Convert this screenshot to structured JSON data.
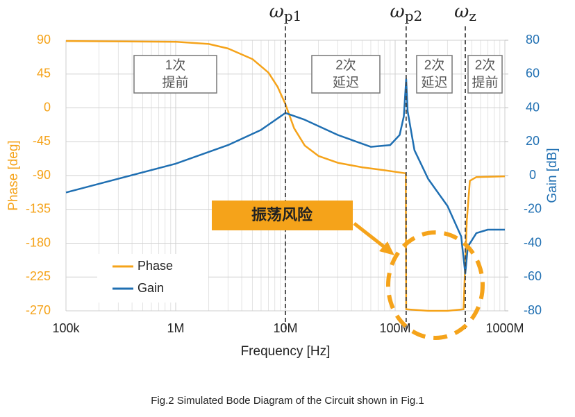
{
  "chart_data": {
    "type": "line",
    "x_label": "Frequency [Hz]",
    "y_label": "Phase [deg]",
    "y2_label": "Gain [dB]",
    "log_x": true,
    "grid": true,
    "legend": "lower left",
    "xlim": [
      100000,
      1000000000
    ],
    "xticks": [
      {
        "value": 100000,
        "label": "100k"
      },
      {
        "value": 1000000,
        "label": "1M"
      },
      {
        "value": 10000000,
        "label": "10M"
      },
      {
        "value": 100000000,
        "label": "100M"
      },
      {
        "value": 1000000000,
        "label": "1000M"
      }
    ],
    "ylim": [
      -270,
      90
    ],
    "yticks": [
      90,
      45,
      0,
      -45,
      -90,
      -135,
      -180,
      -225,
      -270
    ],
    "y2lim": [
      -80,
      80
    ],
    "y2ticks": [
      80,
      60,
      40,
      20,
      0,
      -20,
      -40,
      -60,
      -80
    ],
    "series": [
      {
        "name": "Phase",
        "color": "#f5a31a",
        "x": [
          100000,
          1000000,
          2000000,
          3000000,
          5000000,
          7000000,
          8500000,
          10000000,
          12000000,
          15000000,
          20000000,
          30000000,
          50000000,
          80000000,
          125000000,
          126000000,
          200000000,
          300000000,
          420000000,
          450000000,
          480000000,
          550000000,
          1000000000
        ],
        "values": [
          89,
          88,
          85,
          79,
          65,
          47,
          28,
          5,
          -27,
          -50,
          -64,
          -73,
          -79,
          -83,
          -87,
          -268,
          -270,
          -270,
          -268,
          -150,
          -97,
          -92,
          -91
        ]
      },
      {
        "name": "Gain",
        "color": "#1f6fb2",
        "axis": "y2",
        "x": [
          100000,
          1000000,
          3000000,
          6000000,
          10000000,
          15000000,
          30000000,
          60000000,
          90000000,
          110000000,
          120000000,
          126000000,
          130000000,
          150000000,
          200000000,
          300000000,
          400000000,
          436000000,
          460000000,
          550000000,
          700000000,
          1000000000
        ],
        "values": [
          -10,
          7,
          18,
          27,
          37,
          33,
          24,
          17,
          18,
          24,
          35,
          57,
          38,
          15,
          -2,
          -18,
          -36,
          -58,
          -42,
          -34,
          -32,
          -32
        ]
      }
    ],
    "markers": [
      {
        "symbol": "ω",
        "sub": "p1",
        "x": 10000000
      },
      {
        "symbol": "ω",
        "sub": "p2",
        "x": 126000000
      },
      {
        "symbol": "ω",
        "sub": "z",
        "x": 436000000
      }
    ],
    "notes": [
      [
        "1次",
        "提前"
      ],
      [
        "2次",
        "延迟"
      ],
      [
        "2次",
        "延迟"
      ],
      [
        "2次",
        "提前"
      ]
    ],
    "callout": "振荡风险",
    "caption": "Fig.2 Simulated Bode Diagram of the Circuit shown in Fig.1"
  }
}
